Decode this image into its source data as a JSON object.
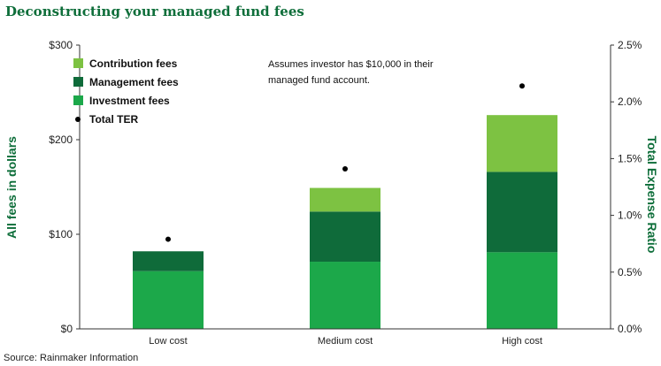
{
  "title": "Deconstructing your managed fund fees",
  "source": "Source: Rainmaker Information",
  "annotation": [
    "Assumes investor has $10,000 in their",
    "managed fund account."
  ],
  "chart_data": {
    "type": "bar",
    "stacked": true,
    "categories": [
      "Low cost",
      "Medium cost",
      "High cost"
    ],
    "series": [
      {
        "name": "Investment fees",
        "color": "#1ca84a",
        "values": [
          61,
          71,
          81
        ]
      },
      {
        "name": "Management fees",
        "color": "#0f6b3a",
        "values": [
          21,
          53,
          85
        ]
      },
      {
        "name": "Contribution fees",
        "color": "#7dc242",
        "values": [
          0,
          25,
          60
        ]
      }
    ],
    "line_series": {
      "name": "Total TER",
      "color": "#000000",
      "axis": "right",
      "values": [
        0.79,
        1.41,
        2.14
      ]
    },
    "ylabel": "All fees in dollars",
    "ylim": [
      0,
      300
    ],
    "yticks": [
      "$0",
      "$100",
      "$200",
      "$300"
    ],
    "y2label": "Total Expense Ratio",
    "y2lim": [
      0,
      2.5
    ],
    "y2ticks": [
      "0.0%",
      "0.5%",
      "1.0%",
      "1.5%",
      "2.0%",
      "2.5%"
    ],
    "legend": [
      "Contribution fees",
      "Management fees",
      "Investment fees",
      "Total TER"
    ],
    "legend_position": "top-left",
    "grid": false
  }
}
